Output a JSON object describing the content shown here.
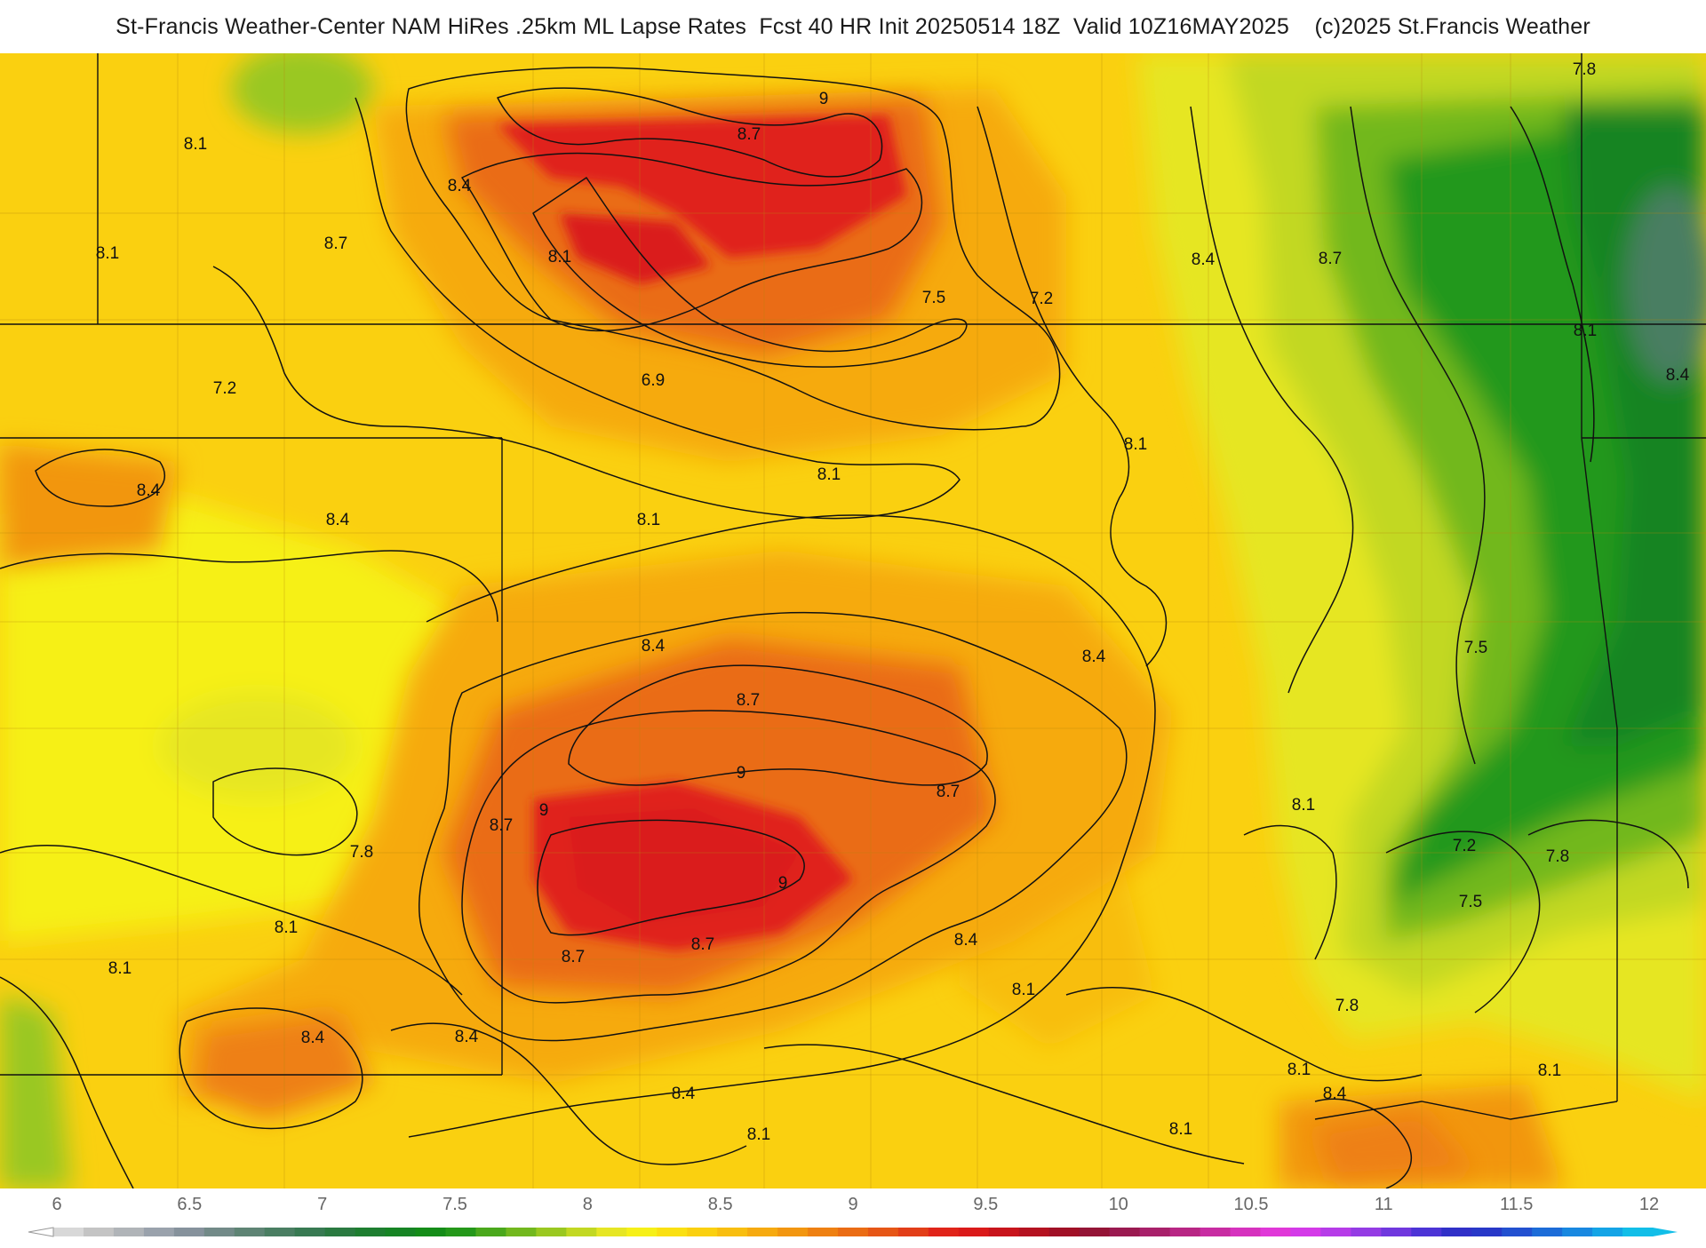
{
  "header": {
    "title": "St-Francis Weather-Center NAM HiRes .25km ML Lapse Rates  Fcst 40 HR Init 20250514 18Z  Valid 10Z16MAY2025    (c)2025 St.Francis Weather"
  },
  "map": {
    "contour_labels": [
      {
        "text": "9"
      },
      {
        "text": "8.7"
      },
      {
        "text": "8.1"
      },
      {
        "text": "8.4"
      },
      {
        "text": "8.1"
      },
      {
        "text": "8.7"
      },
      {
        "text": "8.1"
      },
      {
        "text": "8.4"
      },
      {
        "text": "8.7"
      },
      {
        "text": "7.8"
      },
      {
        "text": "7.5"
      },
      {
        "text": "7.2"
      },
      {
        "text": "8.1"
      },
      {
        "text": "8.4"
      },
      {
        "text": "7.2"
      },
      {
        "text": "6.9"
      },
      {
        "text": "8.1"
      },
      {
        "text": "8.4"
      },
      {
        "text": "8.4"
      },
      {
        "text": "8.1"
      },
      {
        "text": "8.1"
      },
      {
        "text": "8.4"
      },
      {
        "text": "8.4"
      },
      {
        "text": "8.7"
      },
      {
        "text": "9"
      },
      {
        "text": "9"
      },
      {
        "text": "8.7"
      },
      {
        "text": "8.7"
      },
      {
        "text": "7.8"
      },
      {
        "text": "7.5"
      },
      {
        "text": "9"
      },
      {
        "text": "8.1"
      },
      {
        "text": "7.2"
      },
      {
        "text": "7.8"
      },
      {
        "text": "7.5"
      },
      {
        "text": "8.1"
      },
      {
        "text": "8.7"
      },
      {
        "text": "8.7"
      },
      {
        "text": "8.4"
      },
      {
        "text": "8.1"
      },
      {
        "text": "8.4"
      },
      {
        "text": "8.4"
      },
      {
        "text": "8.4"
      },
      {
        "text": "8.1"
      },
      {
        "text": "7.8"
      },
      {
        "text": "8.1"
      },
      {
        "text": "8.4"
      },
      {
        "text": "8.1"
      },
      {
        "text": "8.1"
      },
      {
        "text": "8.1"
      }
    ]
  },
  "colorbar": {
    "ticks": [
      "6",
      "6.5",
      "7",
      "7.5",
      "8",
      "8.5",
      "9",
      "9.5",
      "10",
      "10.5",
      "11",
      "11.5",
      "12"
    ],
    "colors": [
      "#d8d8d8",
      "#c4c4c4",
      "#b0b4b8",
      "#9aa2ac",
      "#86929c",
      "#728a88",
      "#5e8474",
      "#4a7e62",
      "#387a52",
      "#2a7a40",
      "#1e7e30",
      "#168424",
      "#148c18",
      "#24981a",
      "#4aa81c",
      "#72b81e",
      "#9ac820",
      "#c2d822",
      "#e6e624",
      "#f6f018",
      "#fae012",
      "#fad010",
      "#f8be10",
      "#f6aa10",
      "#f29610",
      "#ee8012",
      "#ea6c14",
      "#e65616",
      "#e23e18",
      "#e0241a",
      "#da1a1a",
      "#c8141c",
      "#b41220",
      "#a01026",
      "#941436",
      "#9a1a50",
      "#a8206a",
      "#b82684",
      "#c82ca2",
      "#d632be",
      "#e038d8",
      "#d43ae8",
      "#b63ce8",
      "#943ce4",
      "#7038de",
      "#4c34d6",
      "#3030c8",
      "#2838c8",
      "#2250d0",
      "#1c6cd8",
      "#1888e0",
      "#14a4e6",
      "#12bee8"
    ]
  },
  "colors": {
    "background_yellow": "#f6f018",
    "orange": "#f6aa10",
    "red": "#e0241a",
    "green_dark": "#168424",
    "green_mid": "#72b81e"
  }
}
